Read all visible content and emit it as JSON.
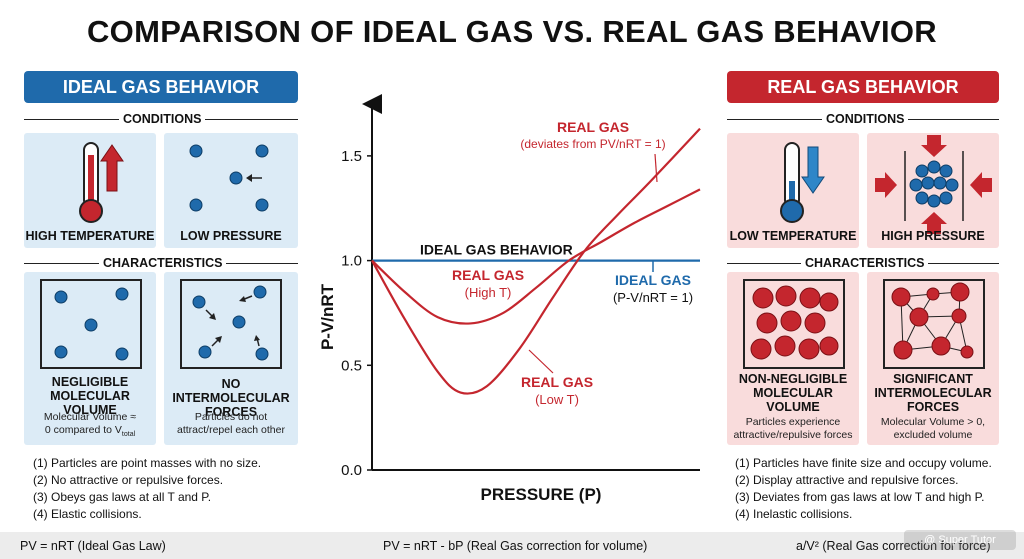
{
  "title": "COMPARISON OF IDEAL GAS VS. REAL GAS BEHAVIOR",
  "ideal": {
    "header": "IDEAL GAS BEHAVIOR",
    "conditions_label": "CONDITIONS",
    "condition_1": "HIGH TEMPERATURE",
    "condition_2": "LOW PRESSURE",
    "characteristics_label": "CHARACTERISTICS",
    "char_1_title_line1": "NEGLIGIBLE",
    "char_1_title_line2": "MOLECULAR VOLUME",
    "char_1_sub_line1": "Molecular Volume ≈",
    "char_1_sub_line2": "0 compared to V",
    "char_1_sub_subscript": "total",
    "char_2_title_line1": "NO INTERMOLECULAR",
    "char_2_title_line2": "FORCES",
    "char_2_sub_line1": "Particles do not",
    "char_2_sub_line2": "attract/repel each other",
    "points": [
      "(1) Particles are point masses with no size.",
      "(2) No attractive or repulsive forces.",
      "(3) Obeys gas laws at all T and P.",
      "(4) Elastic collisions."
    ]
  },
  "real": {
    "header": "REAL GAS BEHAVIOR",
    "conditions_label": "CONDITIONS",
    "condition_1": "LOW TEMPERATURE",
    "condition_2": "HIGH PRESSURE",
    "characteristics_label": "CHARACTERISTICS",
    "char_1_title_line1": "NON-NEGLIGIBLE",
    "char_1_title_line2": "MOLECULAR",
    "char_1_title_line3": "VOLUME",
    "char_1_sub_line1": "Particles experience",
    "char_1_sub_line2": "attractive/repulsive forces",
    "char_2_title_line1": "SIGNIFICANT",
    "char_2_title_line2": "INTERMOLECULAR",
    "char_2_title_line3": "FORCES",
    "char_2_sub_line1": "Molecular Volume > 0,",
    "char_2_sub_line2": "excluded volume",
    "points": [
      "(1) Particles have finite size and occupy volume.",
      "(2) Display attractive and repulsive forces.",
      "(3) Deviates from gas laws at low T and high P.",
      "(4) Inelastic collisions."
    ]
  },
  "chart_data": {
    "type": "line",
    "xlabel": "PRESSURE (P)",
    "ylabel": "P-V/nRT",
    "ylim": [
      0.0,
      1.7
    ],
    "yticks": [
      "0.0",
      "0.5",
      "1.0",
      "1.5"
    ],
    "series": [
      {
        "name": "IDEAL GAS BEHAVIOR",
        "color": "#1f6aab",
        "x": [
          0,
          1
        ],
        "y": [
          1.0,
          1.0
        ]
      },
      {
        "name": "REAL GAS (High T)",
        "color": "#c4262e",
        "x": [
          0,
          0.1,
          0.2,
          0.3,
          0.4,
          0.5,
          0.6,
          0.7,
          0.8,
          0.9,
          1.0
        ],
        "y": [
          1.0,
          0.85,
          0.73,
          0.7,
          0.75,
          0.87,
          1.0,
          1.09,
          1.18,
          1.26,
          1.34
        ]
      },
      {
        "name": "REAL GAS (Low T)",
        "color": "#c4262e",
        "x": [
          0,
          0.1,
          0.2,
          0.27,
          0.35,
          0.45,
          0.55,
          0.65,
          0.75,
          0.85,
          1.0
        ],
        "y": [
          1.0,
          0.72,
          0.47,
          0.37,
          0.4,
          0.58,
          0.82,
          1.05,
          1.22,
          1.38,
          1.63
        ]
      }
    ],
    "annotations": {
      "ideal_line_label": "IDEAL GAS BEHAVIOR",
      "real_gas_top_label": "REAL GAS",
      "real_gas_top_sub": "(deviates from PV/nRT = 1)",
      "real_gas_high_t_label": "REAL GAS",
      "real_gas_high_t_sub": "(High T)",
      "real_gas_low_t_label": "REAL GAS",
      "real_gas_low_t_sub": "(Low T)",
      "ideal_gas_right_label": "IDEAL GAS",
      "ideal_gas_right_sub": "(P-V/nRT = 1)"
    }
  },
  "footer": {
    "left": "PV = nRT (Ideal Gas Law)",
    "center": "PV = nRT - bP (Real Gas correction for volume)",
    "right": "a/V² (Real Gas correction for force)"
  },
  "watermark": "@ Super Tutor",
  "colors": {
    "ideal": "#1f6aab",
    "real": "#c4262e"
  }
}
